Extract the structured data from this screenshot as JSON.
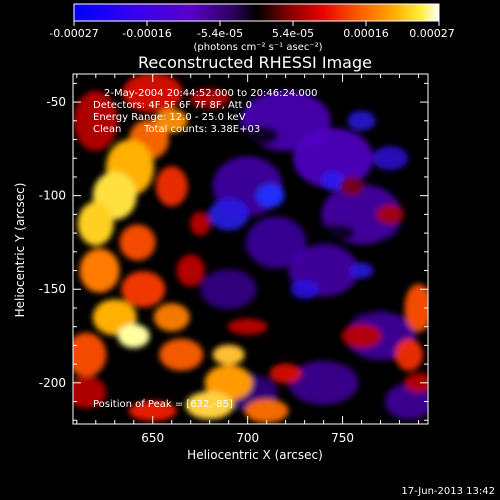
{
  "colorbar": {
    "ticks": [
      "-0.00027",
      "-0.00016",
      "-5.4e-05",
      "5.4e-05",
      "0.00016",
      "0.00027"
    ],
    "unit_label": "(photons cm⁻² s⁻¹ asec⁻²)",
    "range": [
      -0.00027,
      0.00027
    ]
  },
  "chart_data": {
    "type": "heatmap",
    "title": "Reconstructed RHESSI Image",
    "xlabel": "Heliocentric X (arcsec)",
    "ylabel": "Heliocentric Y (arcsec)",
    "xlim": [
      608,
      795
    ],
    "ylim": [
      -222,
      -35
    ],
    "xticks": [
      650,
      700,
      750
    ],
    "yticks": [
      -50,
      -100,
      -150,
      -200
    ],
    "colormap": "blue-purple-black-red-yellow-white",
    "annotations": [
      "2-May-2004 20:44:52.000 to 20:46:24.000",
      "Detectors: 4F 5F 6F 7F 8F, Att 0",
      "Energy Range: 12.0 - 25.0 keV",
      "Clean",
      "Total counts: 3.38E+03"
    ],
    "peak_label": "Position of Peak = [632,-85]",
    "peak": [
      632,
      -85
    ]
  },
  "footer": {
    "date": "17-Jun-2013 13:42"
  }
}
